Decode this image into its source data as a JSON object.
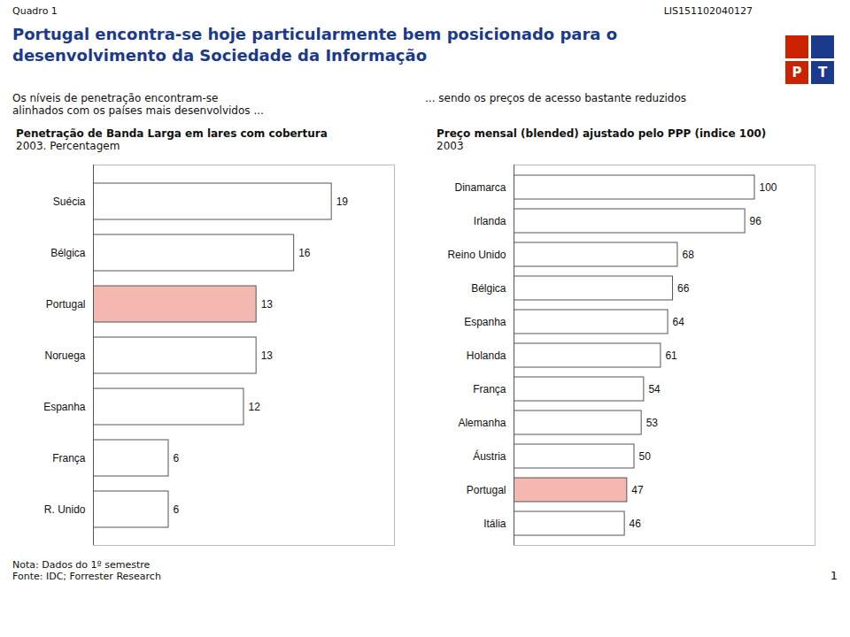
{
  "title": [
    "Portugal encontra-se hoje particularmente bem posicionado para o",
    "desenvolvimento da Sociedade da Informação"
  ],
  "annotations": [
    "Quadro 1",
    "LIS151102040127",
    "Os níveis de penetração encontram-se\nalinhados com os países mais desenvolvidos ...",
    "... sendo os preços de acesso bastante reduzidos",
    "Nota: Dados do 1º semestre",
    "Fonte: IDC; Forrester Research",
    "1",
    "P",
    "T"
  ],
  "chart_data": [
    {
      "type": "bar",
      "orientation": "horizontal",
      "title": "Penetração de Banda Larga em lares com cobertura",
      "subtitle": "2003. Percentagem",
      "categories": [
        "Suécia",
        "Bélgica",
        "Portugal",
        "Noruega",
        "Espanha",
        "França",
        "R. Unido"
      ],
      "values": [
        19,
        16,
        13,
        13,
        12,
        6,
        6
      ],
      "colors": [
        "#FFFFFF",
        "#FFFFFF",
        "#F4B8B0",
        "#FFFFFF",
        "#FFFFFF",
        "#FFFFFF",
        "#FFFFFF"
      ],
      "xlim": [
        0,
        24
      ],
      "data_labels": true,
      "tick_labels": "y",
      "grid": false
    },
    {
      "type": "bar",
      "orientation": "horizontal",
      "title": "Preço mensal (blended) ajustado pelo PPP (indice 100)",
      "subtitle": "2003",
      "categories": [
        "Dinamarca",
        "Irlanda",
        "Reino Unido",
        "Bélgica",
        "Espanha",
        "Holanda",
        "França",
        "Alemanha",
        "Áustria",
        "Portugal",
        "Itália"
      ],
      "values": [
        100,
        96,
        68,
        66,
        64,
        61,
        54,
        53,
        50,
        47,
        46
      ],
      "colors": [
        "#FFFFFF",
        "#FFFFFF",
        "#FFFFFF",
        "#FFFFFF",
        "#FFFFFF",
        "#FFFFFF",
        "#FFFFFF",
        "#FFFFFF",
        "#FFFFFF",
        "#F4B8B0",
        "#FFFFFF"
      ],
      "xlim": [
        0,
        125
      ],
      "data_labels": true,
      "tick_labels": "y",
      "grid": false
    }
  ]
}
